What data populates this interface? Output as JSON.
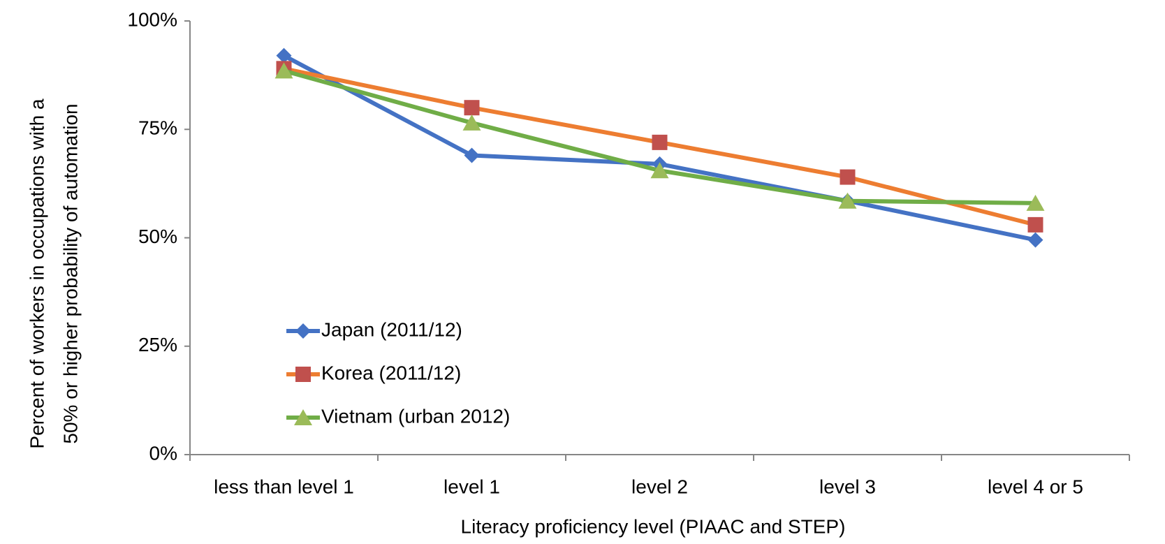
{
  "chart_data": {
    "type": "line",
    "xlabel": "Literacy proficiency level (PIAAC and STEP)",
    "ylabel": [
      "Percent of workers in occupations with a",
      "50% or higher probability of automation"
    ],
    "categories": [
      "less than level 1",
      "level 1",
      "level 2",
      "level 3",
      "level 4 or 5"
    ],
    "series": [
      {
        "name": "Japan (2011/12)",
        "color": "#4472c4",
        "marker": "diamond",
        "marker_color": "#4472c4",
        "values": [
          92,
          69,
          67,
          58.5,
          49.5
        ]
      },
      {
        "name": "Korea (2011/12)",
        "color": "#ed7d31",
        "marker": "square",
        "marker_color": "#c0504d",
        "values": [
          89,
          80,
          72,
          64,
          53
        ]
      },
      {
        "name": "Vietnam (urban 2012)",
        "color": "#70ad47",
        "marker": "triangle",
        "marker_color": "#9bbb59",
        "values": [
          88.5,
          76.5,
          65.5,
          58.5,
          58
        ]
      }
    ],
    "ylim": [
      0,
      100
    ],
    "yticks": [
      {
        "value": 0,
        "label": "0%"
      },
      {
        "value": 25,
        "label": "25%"
      },
      {
        "value": 50,
        "label": "50%"
      },
      {
        "value": 75,
        "label": "75%"
      },
      {
        "value": 100,
        "label": "100%"
      }
    ],
    "legend": "lower-left"
  }
}
